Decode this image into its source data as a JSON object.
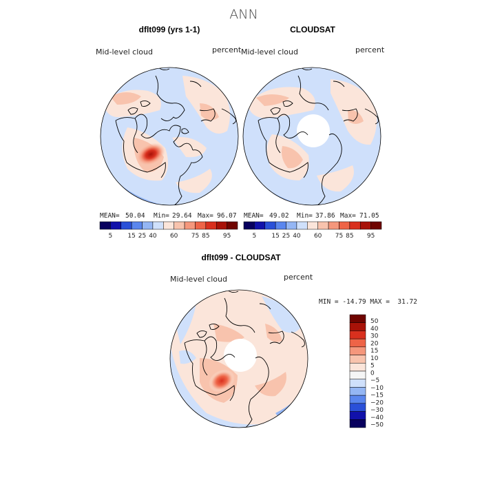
{
  "figure": {
    "title": "ANN"
  },
  "colors": {
    "palette_abs": [
      "#08005e",
      "#1111aa",
      "#2a50d8",
      "#5a86ee",
      "#94b6f4",
      "#cfe0fb",
      "#fbe5da",
      "#f8c3ad",
      "#f5977c",
      "#ee6447",
      "#d9301e",
      "#a81208",
      "#6f0400"
    ],
    "palette_diff": [
      "#08005e",
      "#1111aa",
      "#2a50d8",
      "#5a86ee",
      "#94b6f4",
      "#cfe0fb",
      "#f5f5f5",
      "#fbe5da",
      "#f8c3ad",
      "#f5977c",
      "#ee6447",
      "#d9301e",
      "#a81208",
      "#6f0400"
    ],
    "land_outline": "#000000"
  },
  "chart_data": [
    {
      "type": "heatmap",
      "title": "dflt099 (yrs 1-1)",
      "left_label": "Mid-level cloud",
      "right_label": "percent",
      "stats": {
        "mean_label": "MEAN=",
        "mean": "50.04",
        "min_label": "Min=",
        "min": "29.64",
        "max_label": "Max=",
        "max": "96.07"
      },
      "colorbar": {
        "orientation": "horizontal",
        "ticks": [
          "5",
          "15",
          "25",
          "40",
          "60",
          "75",
          "85",
          "95"
        ]
      },
      "polar_hole": false,
      "field": [
        {
          "lon": 110,
          "lat": 57,
          "value": 96
        },
        {
          "lon": 100,
          "lat": 62,
          "value": 80
        },
        {
          "lon": 45,
          "lat": 62,
          "value": 64
        },
        {
          "lon": -15,
          "lat": 58,
          "value": 56
        },
        {
          "lon": -170,
          "lat": 62,
          "value": 56
        },
        {
          "lon": -60,
          "lat": 55,
          "value": 30
        },
        {
          "lon": 150,
          "lat": 72,
          "value": 38
        },
        {
          "lon": 180,
          "lat": 50,
          "value": 42
        }
      ]
    },
    {
      "type": "heatmap",
      "title": "CLOUDSAT",
      "left_label": "Mid-level cloud",
      "right_label": "percent",
      "stats": {
        "mean_label": "MEAN=",
        "mean": "49.02",
        "min_label": "Min=",
        "min": "37.86",
        "max_label": "Max=",
        "max": "71.05"
      },
      "colorbar": {
        "orientation": "horizontal",
        "ticks": [
          "5",
          "15",
          "25",
          "40",
          "60",
          "75",
          "85",
          "95"
        ]
      },
      "polar_hole": true,
      "field": [
        {
          "lon": 110,
          "lat": 60,
          "value": 60
        },
        {
          "lon": -20,
          "lat": 55,
          "value": 58
        },
        {
          "lon": -170,
          "lat": 60,
          "value": 56
        },
        {
          "lon": -50,
          "lat": 52,
          "value": 38
        },
        {
          "lon": 150,
          "lat": 75,
          "value": 44
        },
        {
          "lon": 60,
          "lat": 50,
          "value": 58
        }
      ]
    },
    {
      "type": "heatmap",
      "title": "dflt099 - CLOUDSAT",
      "left_label": "Mid-level cloud",
      "right_label": "percent",
      "stats": {
        "range_text": "MIN = -14.79 MAX =  31.72"
      },
      "colorbar": {
        "orientation": "vertical",
        "ticks": [
          "50",
          "40",
          "30",
          "20",
          "15",
          "10",
          "5",
          "0",
          "−5",
          "−10",
          "−15",
          "−20",
          "−30",
          "−40",
          "−50"
        ]
      },
      "polar_hole": true,
      "field": [
        {
          "lon": 110,
          "lat": 58,
          "value": 31.7
        },
        {
          "lon": 90,
          "lat": 65,
          "value": 18
        },
        {
          "lon": 45,
          "lat": 60,
          "value": 8
        },
        {
          "lon": -80,
          "lat": 55,
          "value": -14.8
        },
        {
          "lon": -160,
          "lat": 55,
          "value": 6
        },
        {
          "lon": 170,
          "lat": 45,
          "value": -6
        }
      ]
    }
  ]
}
